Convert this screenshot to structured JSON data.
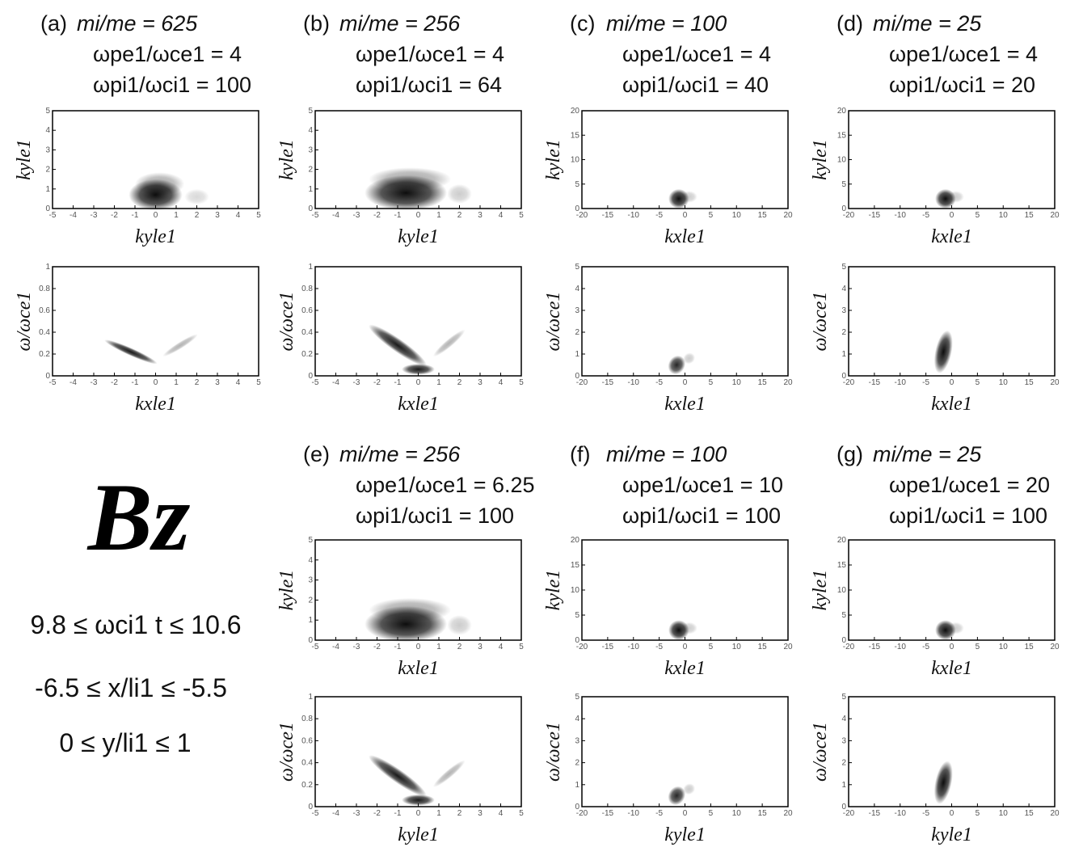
{
  "figure": {
    "panels": [
      {
        "label": "(a)",
        "params": [
          "mi/me = 625",
          "ωpe1/ωce1 = 4",
          "ωpi1/ωci1 = 100"
        ],
        "top": {
          "xlabel": "kyle1",
          "ylabel": "kyle1",
          "xlim": [
            -5,
            5
          ],
          "ylim": [
            0,
            5
          ],
          "xticks": [
            -5,
            -4,
            -3,
            -2,
            -1,
            0,
            1,
            2,
            3,
            4,
            5
          ],
          "yticks": [
            0,
            1,
            2,
            3,
            4,
            5
          ]
        },
        "bottom": {
          "xlabel": "kxle1",
          "ylabel": "ω/ωce1",
          "xlim": [
            -5,
            5
          ],
          "ylim": [
            0,
            1
          ],
          "xticks": [
            -5,
            -4,
            -3,
            -2,
            -1,
            0,
            1,
            2,
            3,
            4,
            5
          ],
          "yticks": [
            0,
            0.2,
            0.4,
            0.6,
            0.8,
            1
          ]
        }
      },
      {
        "label": "(b)",
        "params": [
          "mi/me = 256",
          "ωpe1/ωce1 = 4",
          "ωpi1/ωci1 = 64"
        ],
        "top": {
          "xlabel": "kyle1",
          "ylabel": "kyle1",
          "xlim": [
            -5,
            5
          ],
          "ylim": [
            0,
            5
          ],
          "xticks": [
            -5,
            -4,
            -3,
            -2,
            -1,
            0,
            1,
            2,
            3,
            4,
            5
          ],
          "yticks": [
            0,
            1,
            2,
            3,
            4,
            5
          ]
        },
        "bottom": {
          "xlabel": "kxle1",
          "ylabel": "ω/ωce1",
          "xlim": [
            -5,
            5
          ],
          "ylim": [
            0,
            1
          ],
          "xticks": [
            -5,
            -4,
            -3,
            -2,
            -1,
            0,
            1,
            2,
            3,
            4,
            5
          ],
          "yticks": [
            0,
            0.2,
            0.4,
            0.6,
            0.8,
            1
          ]
        }
      },
      {
        "label": "(c)",
        "params": [
          "mi/me = 100",
          "ωpe1/ωce1 = 4",
          "ωpi1/ωci1 = 40"
        ],
        "top": {
          "xlabel": "kxle1",
          "ylabel": "kyle1",
          "xlim": [
            -20,
            20
          ],
          "ylim": [
            0,
            20
          ],
          "xticks": [
            -20,
            -15,
            -10,
            -5,
            0,
            5,
            10,
            15,
            20
          ],
          "yticks": [
            0,
            5,
            10,
            15,
            20
          ]
        },
        "bottom": {
          "xlabel": "kxle1",
          "ylabel": "ω/ωce1",
          "xlim": [
            -20,
            20
          ],
          "ylim": [
            0,
            5
          ],
          "xticks": [
            -20,
            -15,
            -10,
            -5,
            0,
            5,
            10,
            15,
            20
          ],
          "yticks": [
            0,
            1,
            2,
            3,
            4,
            5
          ]
        }
      },
      {
        "label": "(d)",
        "params": [
          "mi/me = 25",
          "ωpe1/ωce1 = 4",
          "ωpi1/ωci1 = 20"
        ],
        "top": {
          "xlabel": "kxle1",
          "ylabel": "kyle1",
          "xlim": [
            -20,
            20
          ],
          "ylim": [
            0,
            20
          ],
          "xticks": [
            -20,
            -15,
            -10,
            -5,
            0,
            5,
            10,
            15,
            20
          ],
          "yticks": [
            0,
            5,
            10,
            15,
            20
          ]
        },
        "bottom": {
          "xlabel": "kxle1",
          "ylabel": "ω/ωce1",
          "xlim": [
            -20,
            20
          ],
          "ylim": [
            0,
            5
          ],
          "xticks": [
            -20,
            -15,
            -10,
            -5,
            0,
            5,
            10,
            15,
            20
          ],
          "yticks": [
            0,
            1,
            2,
            3,
            4,
            5
          ]
        }
      },
      {
        "label": "(e)",
        "params": [
          "mi/me = 256",
          "ωpe1/ωce1 = 6.25",
          "ωpi1/ωci1 = 100"
        ],
        "top": {
          "xlabel": "kxle1",
          "ylabel": "kyle1",
          "xlim": [
            -5,
            5
          ],
          "ylim": [
            0,
            5
          ],
          "xticks": [
            -5,
            -4,
            -3,
            -2,
            -1,
            0,
            1,
            2,
            3,
            4,
            5
          ],
          "yticks": [
            0,
            1,
            2,
            3,
            4,
            5
          ]
        },
        "bottom": {
          "xlabel": "kyle1",
          "ylabel": "ω/ωce1",
          "xlim": [
            -5,
            5
          ],
          "ylim": [
            0,
            1
          ],
          "xticks": [
            -5,
            -4,
            -3,
            -2,
            -1,
            0,
            1,
            2,
            3,
            4,
            5
          ],
          "yticks": [
            0,
            0.2,
            0.4,
            0.6,
            0.8,
            1
          ]
        }
      },
      {
        "label": "(f)",
        "params": [
          "mi/me = 100",
          "ωpe1/ωce1 = 10",
          "ωpi1/ωci1 = 100"
        ],
        "top": {
          "xlabel": "kxle1",
          "ylabel": "kyle1",
          "xlim": [
            -20,
            20
          ],
          "ylim": [
            0,
            20
          ],
          "xticks": [
            -20,
            -15,
            -10,
            -5,
            0,
            5,
            10,
            15,
            20
          ],
          "yticks": [
            0,
            5,
            10,
            15,
            20
          ]
        },
        "bottom": {
          "xlabel": "kyle1",
          "ylabel": "ω/ωce1",
          "xlim": [
            -20,
            20
          ],
          "ylim": [
            0,
            5
          ],
          "xticks": [
            -20,
            -15,
            -10,
            -5,
            0,
            5,
            10,
            15,
            20
          ],
          "yticks": [
            0,
            1,
            2,
            3,
            4,
            5
          ]
        }
      },
      {
        "label": "(g)",
        "params": [
          "mi/me = 25",
          "ωpe1/ωce1 = 20",
          "ωpi1/ωci1 = 100"
        ],
        "top": {
          "xlabel": "kxle1",
          "ylabel": "kyle1",
          "xlim": [
            -20,
            20
          ],
          "ylim": [
            0,
            20
          ],
          "xticks": [
            -20,
            -15,
            -10,
            -5,
            0,
            5,
            10,
            15,
            20
          ],
          "yticks": [
            0,
            5,
            10,
            15,
            20
          ]
        },
        "bottom": {
          "xlabel": "kyle1",
          "ylabel": "ω/ωce1",
          "xlim": [
            -20,
            20
          ],
          "ylim": [
            0,
            5
          ],
          "xticks": [
            -20,
            -15,
            -10,
            -5,
            0,
            5,
            10,
            15,
            20
          ],
          "yticks": [
            0,
            1,
            2,
            3,
            4,
            5
          ]
        }
      }
    ],
    "component": "Bz",
    "ranges": [
      "9.8 ≤ ωci1 t ≤ 10.6",
      "-6.5 ≤ x/li1 ≤ -5.5",
      "0 ≤ y/li1 ≤ 1"
    ]
  }
}
